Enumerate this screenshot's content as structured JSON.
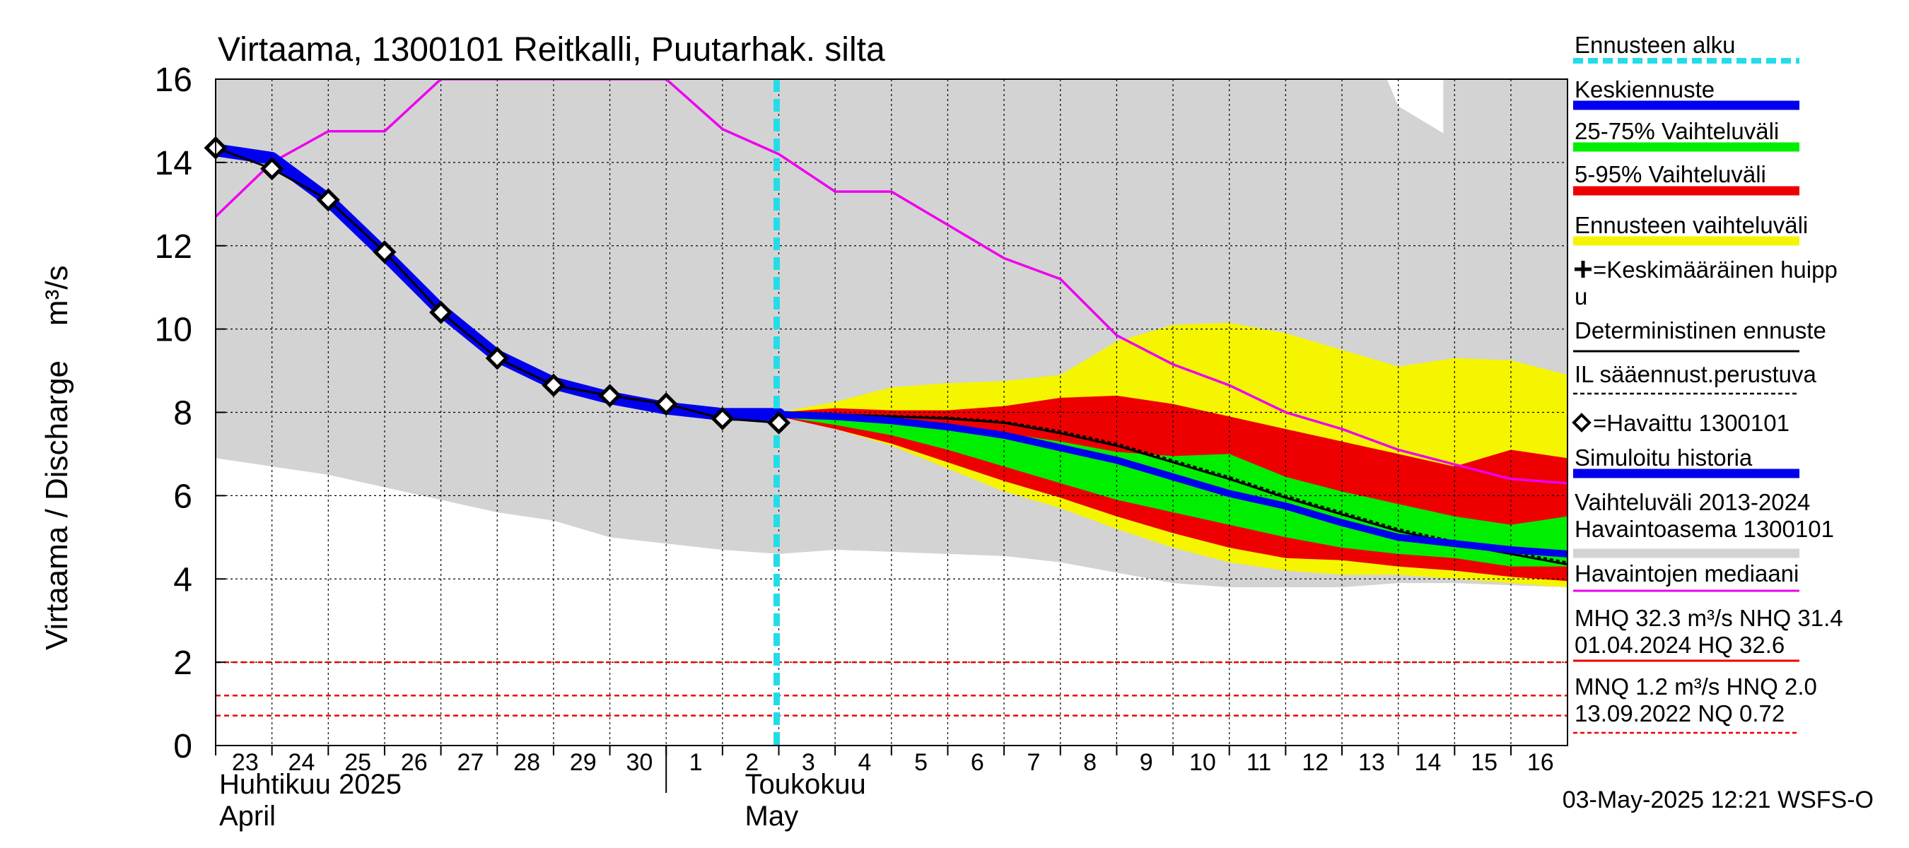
{
  "chart_data": {
    "type": "line",
    "title": "Virtaama, 1300101 Reitkalli, Puutarhak. silta",
    "ylabel": "Virtaama / Discharge    m³/s",
    "ylim": [
      0,
      16
    ],
    "yticks": [
      0,
      2,
      4,
      6,
      8,
      10,
      12,
      14,
      16
    ],
    "day_labels": [
      "23",
      "24",
      "25",
      "26",
      "27",
      "28",
      "29",
      "30",
      "1",
      "2",
      "3",
      "4",
      "5",
      "6",
      "7",
      "8",
      "9",
      "10",
      "11",
      "12",
      "13",
      "14",
      "15",
      "16"
    ],
    "month_labels": [
      {
        "fi": "Huhtikuu  2025",
        "en": "April"
      },
      {
        "fi": "Toukokuu",
        "en": "May"
      }
    ],
    "forecast_start_day_index": 10,
    "footer": "03-May-2025 12:21 WSFS-O",
    "legend": [
      {
        "key": "forecast_start",
        "label": "Ennusteen alku",
        "color": "#22dde8",
        "style": "dash-thick"
      },
      {
        "key": "mean_forecast",
        "label": "Keskiennuste",
        "color": "#0000ee",
        "style": "bar"
      },
      {
        "key": "range_25_75",
        "label": "25-75% Vaihteluväli",
        "color": "#00ee00",
        "style": "bar"
      },
      {
        "key": "range_5_95",
        "label": "5-95% Vaihteluväli",
        "color": "#ee0000",
        "style": "bar"
      },
      {
        "key": "forecast_range",
        "label": "Ennusteen vaihteluväli",
        "color": "#f5f500",
        "style": "bar"
      },
      {
        "key": "mean_peak",
        "label": "=Keskimääräinen huippu",
        "color": "#000000",
        "style": "cross-text"
      },
      {
        "key": "deterministic",
        "label": "Deterministinen ennuste",
        "color": "#000000",
        "style": "line"
      },
      {
        "key": "il_forecast",
        "label": "IL sääennust.perustuva",
        "color": "#000000",
        "style": "dash"
      },
      {
        "key": "observed",
        "label": "=Havaittu 1300101",
        "color": "#000000",
        "style": "diamond-text"
      },
      {
        "key": "simulated",
        "label": "Simuloitu historia",
        "color": "#0000ee",
        "style": "bar"
      },
      {
        "key": "hist_range",
        "label": "Vaihteluväli 2013-2024\n Havaintoasema 1300101",
        "color": "#d3d3d3",
        "style": "bar"
      },
      {
        "key": "median",
        "label": "Havaintojen mediaani",
        "color": "#ee00ee",
        "style": "line"
      },
      {
        "key": "hq",
        "label": "MHQ 32.3 m³/s NHQ 31.4\n01.04.2024 HQ 32.6",
        "color": "#ee0000",
        "style": "line"
      },
      {
        "key": "nq",
        "label": "MNQ  1.2 m³/s HNQ  2.0\n13.09.2022 NQ 0.72",
        "color": "#ee0000",
        "style": "dash"
      }
    ],
    "reference_lines": [
      {
        "name": "HNQ",
        "y": 2.0
      },
      {
        "name": "MNQ",
        "y": 1.2
      },
      {
        "name": "NQ",
        "y": 0.72
      }
    ],
    "series": {
      "hist_range": {
        "x": [
          0,
          1,
          2,
          3,
          4,
          5,
          6,
          7,
          8,
          9,
          10,
          11,
          12,
          13,
          14,
          15,
          16,
          17,
          18,
          19,
          20,
          21,
          22,
          23,
          24,
          25
        ],
        "upper": [
          16,
          16,
          16,
          16,
          16,
          16,
          16,
          16,
          16,
          16,
          16,
          16,
          16,
          16,
          16,
          16,
          16,
          16,
          16,
          16,
          16,
          16,
          16,
          16,
          16,
          16
        ],
        "lower": [
          6.9,
          6.7,
          6.5,
          6.2,
          5.9,
          5.6,
          5.4,
          5.0,
          4.85,
          4.7,
          4.6,
          4.7,
          4.65,
          4.6,
          4.55,
          4.4,
          4.15,
          3.9,
          3.8,
          3.8,
          3.8,
          3.9,
          3.9,
          3.85,
          3.8,
          3.8
        ],
        "notch": [
          [
            20.8,
            16
          ],
          [
            21.0,
            15.35
          ],
          [
            21.8,
            14.7
          ],
          [
            21.8,
            16
          ]
        ]
      },
      "forecast_range": {
        "x": [
          10,
          11,
          12,
          13,
          14,
          15,
          16,
          17,
          18,
          19,
          20,
          21,
          22,
          23,
          24,
          25
        ],
        "upper": [
          8.0,
          8.25,
          8.6,
          8.7,
          8.75,
          8.9,
          9.7,
          10.1,
          10.15,
          9.9,
          9.5,
          9.1,
          9.3,
          9.25,
          8.9,
          8.9
        ],
        "lower": [
          7.9,
          7.6,
          7.2,
          6.65,
          6.1,
          5.7,
          5.2,
          4.75,
          4.4,
          4.2,
          4.1,
          4.1,
          4.0,
          3.9,
          3.8,
          3.8
        ]
      },
      "range_5_95": {
        "x": [
          10,
          11,
          12,
          13,
          14,
          15,
          16,
          17,
          18,
          19,
          20,
          21,
          22,
          23,
          24,
          25
        ],
        "upper": [
          8.0,
          8.1,
          8.05,
          8.05,
          8.15,
          8.35,
          8.4,
          8.2,
          7.9,
          7.6,
          7.3,
          7.0,
          6.7,
          7.1,
          6.9,
          6.9
        ],
        "lower": [
          7.9,
          7.6,
          7.25,
          6.8,
          6.35,
          5.95,
          5.5,
          5.1,
          4.75,
          4.5,
          4.45,
          4.3,
          4.2,
          4.05,
          3.95,
          3.95
        ]
      },
      "range_25_75": {
        "x": [
          10,
          11,
          12,
          13,
          14,
          15,
          16,
          17,
          18,
          19,
          20,
          21,
          22,
          23,
          24,
          25
        ],
        "upper": [
          7.95,
          7.95,
          7.85,
          7.7,
          7.5,
          7.3,
          7.05,
          6.95,
          7.0,
          6.45,
          6.1,
          5.8,
          5.5,
          5.3,
          5.5,
          5.5
        ],
        "lower": [
          7.9,
          7.7,
          7.45,
          7.1,
          6.7,
          6.3,
          5.9,
          5.6,
          5.3,
          5.0,
          4.75,
          4.6,
          4.5,
          4.3,
          4.3,
          4.3
        ]
      },
      "mean_forecast": {
        "x": [
          10,
          11,
          12,
          13,
          14,
          15,
          16,
          17,
          18,
          19,
          20,
          21,
          22,
          23,
          24,
          25
        ],
        "y": [
          7.95,
          7.9,
          7.8,
          7.65,
          7.45,
          7.15,
          6.85,
          6.45,
          6.05,
          5.75,
          5.35,
          5.0,
          4.85,
          4.7,
          4.6,
          4.6
        ]
      },
      "deterministic": {
        "x": [
          10,
          11,
          12,
          13,
          14,
          15,
          16,
          17,
          18,
          19,
          20,
          21,
          22,
          23,
          24,
          25
        ],
        "y": [
          7.95,
          7.95,
          7.9,
          7.85,
          7.75,
          7.5,
          7.2,
          6.8,
          6.4,
          5.95,
          5.55,
          5.15,
          4.85,
          4.6,
          4.35,
          4.3
        ]
      },
      "il_forecast": {
        "x": [
          10,
          11,
          12,
          13,
          14,
          15,
          16,
          17,
          18,
          19,
          20,
          21,
          22,
          23,
          24,
          25
        ],
        "y": [
          7.95,
          7.95,
          7.92,
          7.88,
          7.78,
          7.55,
          7.25,
          6.85,
          6.45,
          6.0,
          5.6,
          5.2,
          4.9,
          4.65,
          4.4,
          4.3
        ]
      },
      "simulated": {
        "x": [
          0,
          1,
          2,
          3,
          4,
          5,
          6,
          7,
          8,
          9,
          10
        ],
        "y": [
          14.3,
          14.1,
          13.1,
          11.8,
          10.45,
          9.35,
          8.7,
          8.35,
          8.1,
          7.95,
          7.95
        ]
      },
      "observed": {
        "x": [
          0,
          1,
          2,
          3,
          4,
          5,
          6,
          7,
          8,
          9,
          10
        ],
        "y": [
          14.35,
          13.85,
          13.1,
          11.85,
          10.4,
          9.3,
          8.65,
          8.4,
          8.2,
          7.85,
          7.75
        ]
      },
      "median": {
        "x": [
          0,
          1,
          2,
          3,
          4,
          8.0,
          9,
          10,
          11,
          12,
          13,
          14,
          15,
          16,
          17,
          18,
          19,
          20,
          21,
          22,
          23,
          24,
          25
        ],
        "y": [
          12.7,
          14.0,
          14.75,
          14.75,
          16.0,
          16.0,
          14.8,
          14.2,
          13.3,
          13.3,
          12.5,
          11.7,
          11.2,
          9.85,
          9.15,
          8.65,
          8.0,
          7.6,
          7.1,
          6.75,
          6.4,
          6.3,
          6.25
        ]
      }
    }
  }
}
